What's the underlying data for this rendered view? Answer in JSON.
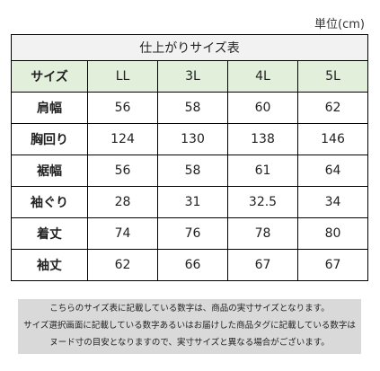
{
  "unit_label": "単位(cm)",
  "table": {
    "title": "仕上がりサイズ表",
    "header": [
      "サイズ",
      "LL",
      "3L",
      "4L",
      "5L"
    ],
    "rows": [
      {
        "label": "肩幅",
        "values": [
          "56",
          "58",
          "60",
          "62"
        ]
      },
      {
        "label": "胸回り",
        "values": [
          "124",
          "130",
          "138",
          "146"
        ]
      },
      {
        "label": "裾幅",
        "values": [
          "56",
          "58",
          "61",
          "64"
        ]
      },
      {
        "label": "袖ぐり",
        "values": [
          "28",
          "31",
          "32.5",
          "34"
        ]
      },
      {
        "label": "着丈",
        "values": [
          "74",
          "76",
          "78",
          "80"
        ]
      },
      {
        "label": "袖丈",
        "values": [
          "62",
          "66",
          "67",
          "67"
        ]
      }
    ]
  },
  "notes": [
    "こちらのサイズ表に記載している数字は、商品の実寸サイズとなります。",
    "サイズ選択画面に記載している数字あるいはお届けした商品タグに記載している数字は",
    "ヌード寸の目安となりますので、実寸サイズと異なる場合がございます。"
  ],
  "colors": {
    "title_bg": "#f2f2f2",
    "header_bg": "#e2efda",
    "notes_bg": "#d9d9d9"
  }
}
